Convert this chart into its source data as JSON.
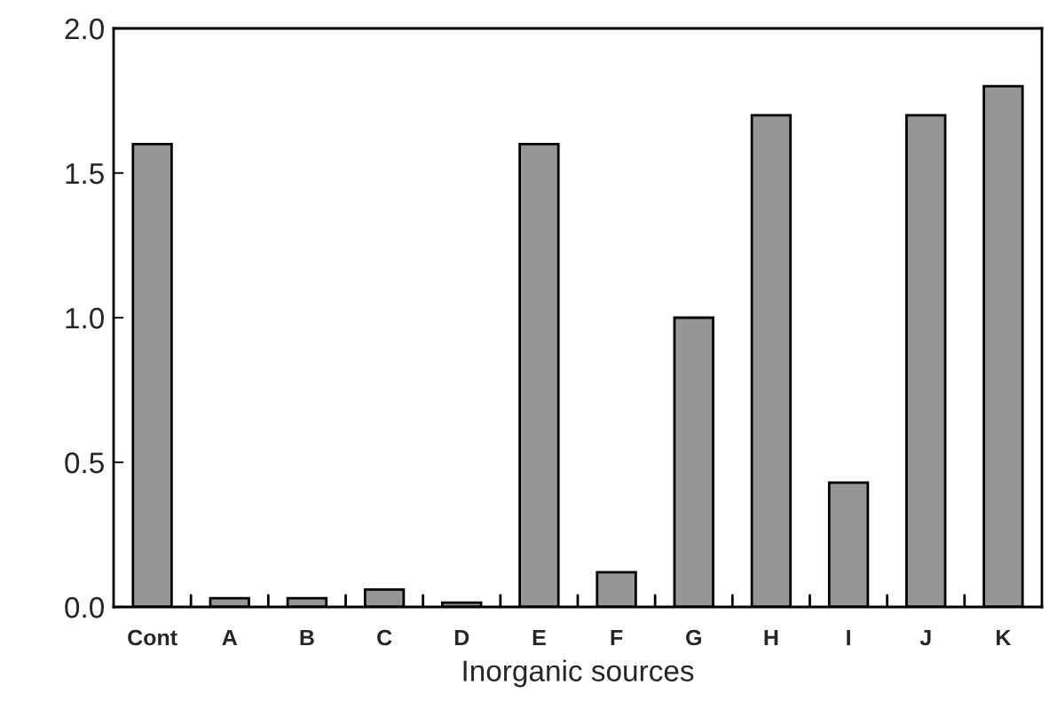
{
  "chart_data": {
    "type": "bar",
    "xlabel": "Inorganic sources",
    "categories": [
      "Cont",
      "A",
      "B",
      "C",
      "D",
      "E",
      "F",
      "G",
      "H",
      "I",
      "J",
      "K"
    ],
    "values": [
      1.6,
      0.03,
      0.03,
      0.06,
      0.015,
      1.6,
      0.12,
      1.0,
      1.7,
      0.43,
      1.7,
      1.8
    ],
    "color": "#969696",
    "ylim": [
      0,
      2.0
    ],
    "yticks": [
      {
        "value": 0,
        "label": "0.0"
      },
      0.5,
      {
        "value": 1,
        "label": "1.0"
      },
      1.5,
      {
        "value": 2,
        "label": "2.0"
      }
    ],
    "grid": false,
    "legend": false
  }
}
